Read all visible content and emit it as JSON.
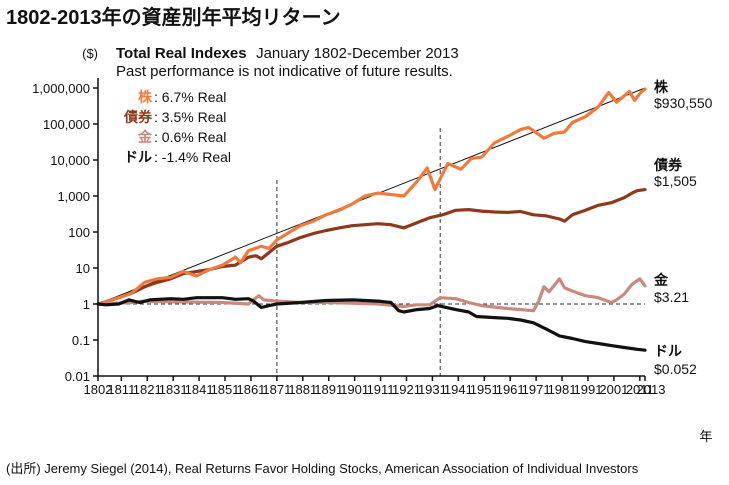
{
  "header": {
    "title": "1802-2013年の資産別年平均リターン",
    "unit_label": "($)",
    "year_unit": "年"
  },
  "chart_data": {
    "type": "line",
    "title": "Total Real Indexes",
    "title_suffix": "January 1802-December 2013",
    "subtitle": "Past performance is not indicative of future results.",
    "y_scale": "log",
    "ylim": [
      0.01,
      1000000
    ],
    "xlim": [
      1802,
      2013
    ],
    "y_ticks": [
      {
        "v": 1000000,
        "label": "1,000,000"
      },
      {
        "v": 100000,
        "label": "100,000"
      },
      {
        "v": 10000,
        "label": "10,000"
      },
      {
        "v": 1000,
        "label": "1,000"
      },
      {
        "v": 100,
        "label": "100"
      },
      {
        "v": 10,
        "label": "10"
      },
      {
        "v": 1,
        "label": "1"
      },
      {
        "v": 0.1,
        "label": "0.1"
      },
      {
        "v": 0.01,
        "label": "0.01"
      }
    ],
    "x_ticks": [
      {
        "v": 1802,
        "label": "1802"
      },
      {
        "v": 1811,
        "label": "1811"
      },
      {
        "v": 1821,
        "label": "1821"
      },
      {
        "v": 1831,
        "label": "1831"
      },
      {
        "v": 1841,
        "label": "1841"
      },
      {
        "v": 1851,
        "label": "1851"
      },
      {
        "v": 1861,
        "label": "1861"
      },
      {
        "v": 1871,
        "label": "1871"
      },
      {
        "v": 1881,
        "label": "1881"
      },
      {
        "v": 1891,
        "label": "1891"
      },
      {
        "v": 1901,
        "label": "1901"
      },
      {
        "v": 1911,
        "label": "1911"
      },
      {
        "v": 1921,
        "label": "1921"
      },
      {
        "v": 1931,
        "label": "1931"
      },
      {
        "v": 1941,
        "label": "1941"
      },
      {
        "v": 1951,
        "label": "1951"
      },
      {
        "v": 1961,
        "label": "1961"
      },
      {
        "v": 1971,
        "label": "1971"
      },
      {
        "v": 1981,
        "label": "1981"
      },
      {
        "v": 1991,
        "label": "1991"
      },
      {
        "v": 2001,
        "label": "2001"
      },
      {
        "v": 2011,
        "label": "2011"
      },
      {
        "v": 2013,
        "label": "2013"
      }
    ],
    "reference_lines": [
      {
        "axis": "x",
        "value": 1871
      },
      {
        "axis": "x",
        "value": 1934
      },
      {
        "axis": "y",
        "value": 1
      }
    ],
    "trend_line": {
      "from": [
        1802,
        1
      ],
      "to": [
        2013,
        1000000
      ]
    },
    "legend": [
      {
        "name": "株",
        "text": ": 6.7% Real",
        "color": "#f07a3c"
      },
      {
        "name": "債券",
        "text": ": 3.5% Real",
        "color": "#8b3a1e"
      },
      {
        "name": "金",
        "text": ": 0.6% Real",
        "color": "#c98a7e"
      },
      {
        "name": "ドル",
        "text": ": -1.4% Real",
        "color": "#111111"
      }
    ],
    "legend_placement": "top-left",
    "series": [
      {
        "name": "株",
        "end_value_label": "$930,550",
        "color": "#f07a3c",
        "points": [
          [
            1802,
            1
          ],
          [
            1806,
            1.2
          ],
          [
            1810,
            1.5
          ],
          [
            1815,
            2
          ],
          [
            1820,
            4
          ],
          [
            1825,
            5
          ],
          [
            1830,
            5.5
          ],
          [
            1835,
            8
          ],
          [
            1840,
            6
          ],
          [
            1845,
            9
          ],
          [
            1850,
            12
          ],
          [
            1855,
            20
          ],
          [
            1857,
            14
          ],
          [
            1860,
            30
          ],
          [
            1865,
            40
          ],
          [
            1868,
            35
          ],
          [
            1871,
            60
          ],
          [
            1875,
            90
          ],
          [
            1880,
            150
          ],
          [
            1885,
            200
          ],
          [
            1890,
            300
          ],
          [
            1895,
            400
          ],
          [
            1900,
            600
          ],
          [
            1905,
            1000
          ],
          [
            1910,
            1200
          ],
          [
            1915,
            1100
          ],
          [
            1920,
            1000
          ],
          [
            1925,
            2500
          ],
          [
            1929,
            6000
          ],
          [
            1932,
            1500
          ],
          [
            1934,
            3000
          ],
          [
            1937,
            8000
          ],
          [
            1942,
            5500
          ],
          [
            1946,
            11000
          ],
          [
            1950,
            12000
          ],
          [
            1955,
            30000
          ],
          [
            1960,
            45000
          ],
          [
            1965,
            70000
          ],
          [
            1968,
            80000
          ],
          [
            1970,
            65000
          ],
          [
            1974,
            40000
          ],
          [
            1978,
            55000
          ],
          [
            1982,
            60000
          ],
          [
            1985,
            110000
          ],
          [
            1990,
            160000
          ],
          [
            1995,
            300000
          ],
          [
            1999,
            750000
          ],
          [
            2002,
            400000
          ],
          [
            2007,
            800000
          ],
          [
            2009,
            450000
          ],
          [
            2011,
            700000
          ],
          [
            2013,
            930550
          ]
        ]
      },
      {
        "name": "債券",
        "end_value_label": "$1,505",
        "color": "#8b3a1e",
        "points": [
          [
            1802,
            1
          ],
          [
            1810,
            1.5
          ],
          [
            1815,
            2
          ],
          [
            1820,
            3
          ],
          [
            1825,
            4
          ],
          [
            1830,
            5
          ],
          [
            1835,
            7
          ],
          [
            1840,
            8
          ],
          [
            1845,
            9
          ],
          [
            1850,
            11
          ],
          [
            1855,
            12
          ],
          [
            1860,
            20
          ],
          [
            1863,
            22
          ],
          [
            1865,
            18
          ],
          [
            1871,
            40
          ],
          [
            1875,
            50
          ],
          [
            1880,
            70
          ],
          [
            1885,
            90
          ],
          [
            1890,
            110
          ],
          [
            1895,
            130
          ],
          [
            1900,
            150
          ],
          [
            1905,
            160
          ],
          [
            1910,
            170
          ],
          [
            1915,
            160
          ],
          [
            1920,
            130
          ],
          [
            1925,
            180
          ],
          [
            1930,
            250
          ],
          [
            1935,
            300
          ],
          [
            1940,
            400
          ],
          [
            1945,
            420
          ],
          [
            1950,
            380
          ],
          [
            1955,
            360
          ],
          [
            1960,
            350
          ],
          [
            1965,
            370
          ],
          [
            1970,
            300
          ],
          [
            1975,
            280
          ],
          [
            1980,
            230
          ],
          [
            1982,
            200
          ],
          [
            1985,
            300
          ],
          [
            1990,
            400
          ],
          [
            1995,
            550
          ],
          [
            2000,
            650
          ],
          [
            2005,
            900
          ],
          [
            2008,
            1200
          ],
          [
            2010,
            1400
          ],
          [
            2013,
            1505
          ]
        ]
      },
      {
        "name": "金",
        "end_value_label": "$3.21",
        "color": "#c98a7e",
        "points": [
          [
            1802,
            1
          ],
          [
            1815,
            1.1
          ],
          [
            1820,
            1.2
          ],
          [
            1830,
            1.15
          ],
          [
            1850,
            1.1
          ],
          [
            1860,
            1.0
          ],
          [
            1862,
            1.3
          ],
          [
            1864,
            1.7
          ],
          [
            1866,
            1.3
          ],
          [
            1871,
            1.2
          ],
          [
            1880,
            1.1
          ],
          [
            1890,
            1.1
          ],
          [
            1900,
            1.05
          ],
          [
            1910,
            1.0
          ],
          [
            1920,
            0.85
          ],
          [
            1925,
            0.95
          ],
          [
            1930,
            0.95
          ],
          [
            1934,
            1.5
          ],
          [
            1940,
            1.4
          ],
          [
            1945,
            1.1
          ],
          [
            1950,
            0.9
          ],
          [
            1960,
            0.75
          ],
          [
            1965,
            0.7
          ],
          [
            1970,
            0.65
          ],
          [
            1972,
            1.2
          ],
          [
            1974,
            3.0
          ],
          [
            1976,
            2.2
          ],
          [
            1980,
            5.0
          ],
          [
            1982,
            2.8
          ],
          [
            1985,
            2.3
          ],
          [
            1990,
            1.7
          ],
          [
            1995,
            1.5
          ],
          [
            2000,
            1.1
          ],
          [
            2002,
            1.3
          ],
          [
            2005,
            1.9
          ],
          [
            2008,
            3.5
          ],
          [
            2011,
            5.0
          ],
          [
            2013,
            3.21
          ]
        ]
      },
      {
        "name": "ドル",
        "end_value_label": "$0.052",
        "color": "#111111",
        "points": [
          [
            1802,
            1
          ],
          [
            1805,
            0.95
          ],
          [
            1810,
            1.0
          ],
          [
            1814,
            1.3
          ],
          [
            1818,
            1.1
          ],
          [
            1822,
            1.3
          ],
          [
            1830,
            1.4
          ],
          [
            1835,
            1.35
          ],
          [
            1840,
            1.5
          ],
          [
            1845,
            1.5
          ],
          [
            1850,
            1.5
          ],
          [
            1855,
            1.35
          ],
          [
            1860,
            1.4
          ],
          [
            1862,
            1.2
          ],
          [
            1865,
            0.8
          ],
          [
            1868,
            0.9
          ],
          [
            1871,
            1.0
          ],
          [
            1880,
            1.1
          ],
          [
            1890,
            1.25
          ],
          [
            1900,
            1.3
          ],
          [
            1910,
            1.2
          ],
          [
            1915,
            1.1
          ],
          [
            1918,
            0.65
          ],
          [
            1920,
            0.6
          ],
          [
            1925,
            0.7
          ],
          [
            1930,
            0.75
          ],
          [
            1933,
            0.9
          ],
          [
            1940,
            0.7
          ],
          [
            1945,
            0.6
          ],
          [
            1948,
            0.45
          ],
          [
            1955,
            0.42
          ],
          [
            1960,
            0.4
          ],
          [
            1965,
            0.36
          ],
          [
            1970,
            0.3
          ],
          [
            1975,
            0.2
          ],
          [
            1980,
            0.13
          ],
          [
            1985,
            0.11
          ],
          [
            1990,
            0.09
          ],
          [
            1995,
            0.08
          ],
          [
            2000,
            0.07
          ],
          [
            2005,
            0.062
          ],
          [
            2010,
            0.055
          ],
          [
            2013,
            0.052
          ]
        ]
      }
    ]
  },
  "footer": {
    "source": "(出所) Jeremy Siegel (2014), Real Returns Favor Holding Stocks, American Association of Individual Investors"
  }
}
